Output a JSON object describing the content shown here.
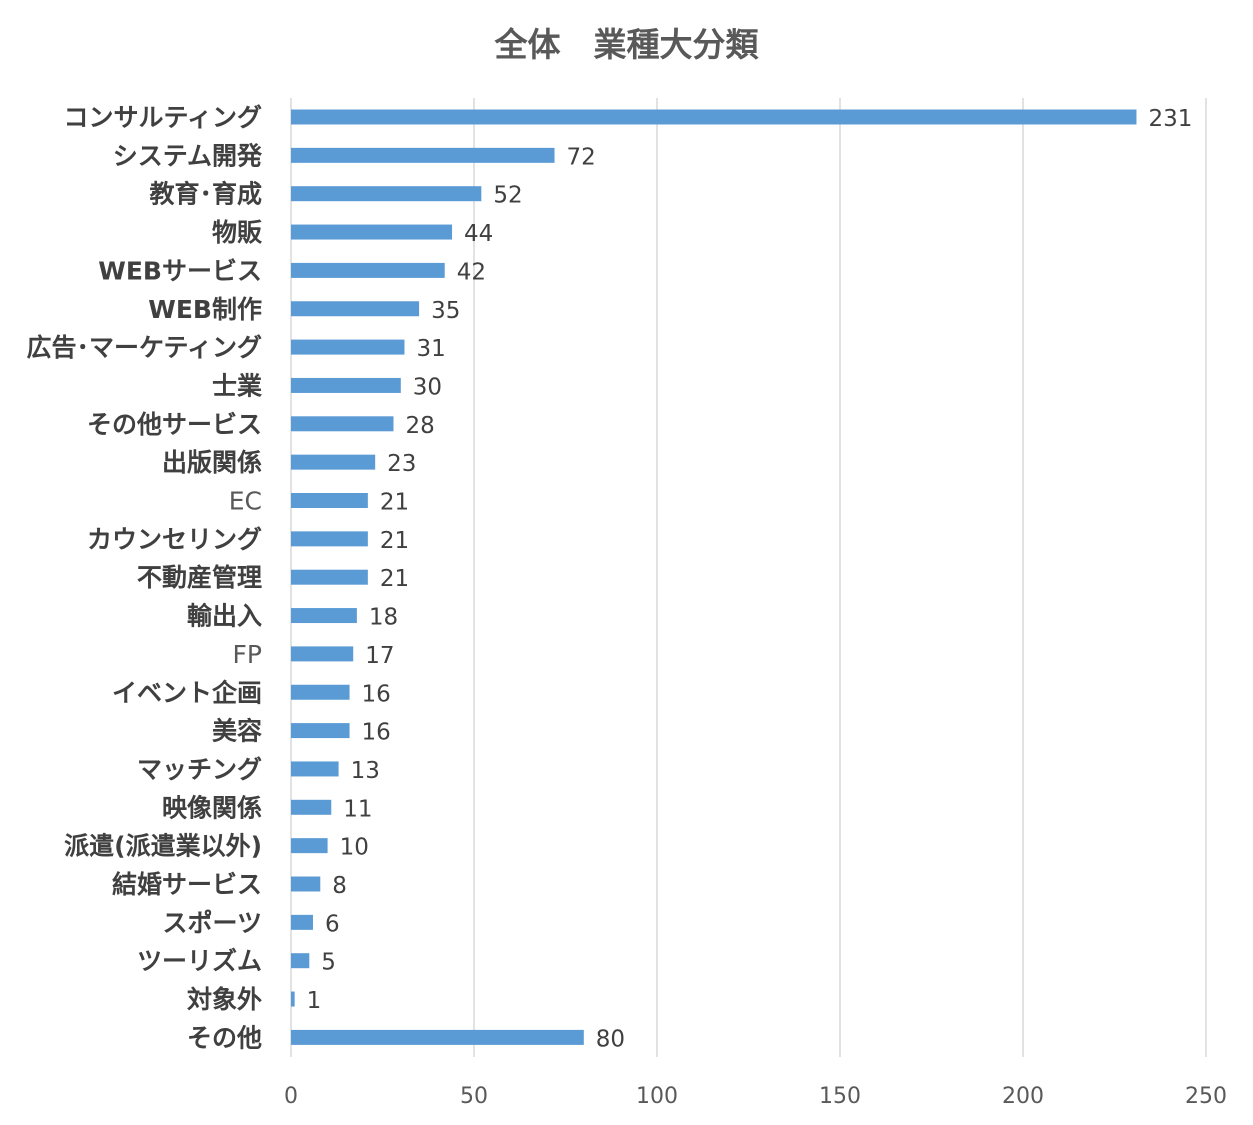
{
  "chart_data": {
    "type": "bar",
    "orientation": "horizontal",
    "title": "全体　業種大分類",
    "xlabel": "",
    "ylabel": "",
    "xlim": [
      0,
      250
    ],
    "x_ticks": [
      0,
      50,
      100,
      150,
      200,
      250
    ],
    "grid": true,
    "legend": "none",
    "bar_color": "#5b9bd5",
    "categories": [
      "コンサルティング",
      "システム開発",
      "教育･育成",
      "物販",
      "WEBサービス",
      "WEB制作",
      "広告･マーケティング",
      "士業",
      "その他サービス",
      "出版関係",
      "EC",
      "カウンセリング",
      "不動産管理",
      "輸出入",
      "FP",
      "イベント企画",
      "美容",
      "マッチング",
      "映像関係",
      "派遣(派遣業以外)",
      "結婚サービス",
      "スポーツ",
      "ツーリズム",
      "対象外",
      "その他"
    ],
    "values": [
      231,
      72,
      52,
      44,
      42,
      35,
      31,
      30,
      28,
      23,
      21,
      21,
      21,
      18,
      17,
      16,
      16,
      13,
      11,
      10,
      8,
      6,
      5,
      1,
      80
    ]
  }
}
